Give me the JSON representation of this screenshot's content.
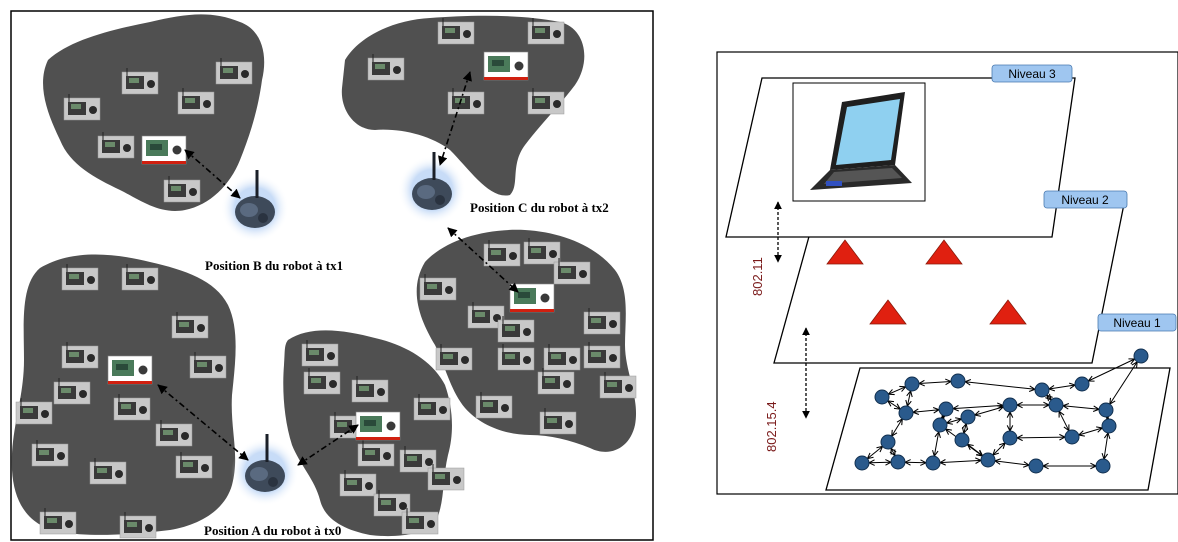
{
  "left_panel": {
    "robot_labels": [
      "Position B du robot à tx1",
      "Position C du robot à tx2",
      "Position A du robot à tx0"
    ]
  },
  "right_panel": {
    "levels": [
      "Niveau 3",
      "Niveau 2",
      "Niveau 1"
    ],
    "protocols": [
      "802.11",
      "802.15.4"
    ]
  },
  "colors": {
    "cluster": "#505050",
    "node": "#2a5a8c",
    "router": "#e02010",
    "level_tab": "#9fc6f0",
    "protocol_text": "#7a1a1a"
  }
}
